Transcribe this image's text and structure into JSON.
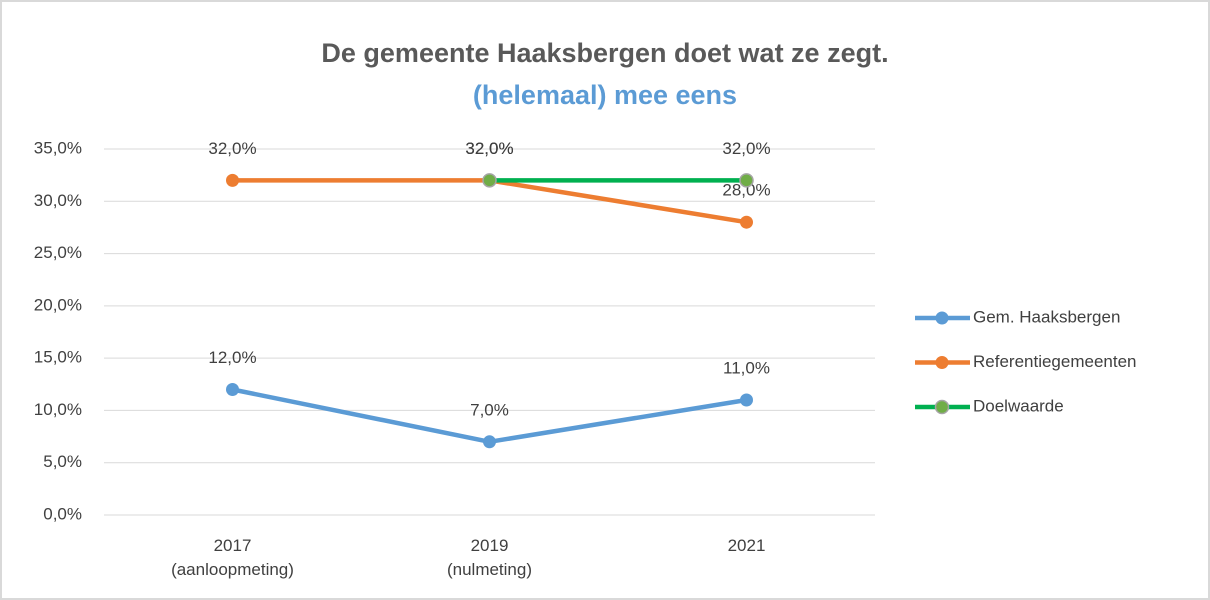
{
  "chart_data": {
    "type": "line",
    "title": "De gemeente Haaksbergen doet wat ze zegt.",
    "subtitle": "(helemaal) mee eens",
    "categories": [
      "2017\n(aanloopmeting)",
      "2019\n(nulmeting)",
      "2021"
    ],
    "series": [
      {
        "name": "Gem. Haaksbergen",
        "color": "#5b9bd5",
        "values": [
          12,
          7,
          11
        ],
        "value_labels": [
          "12,0%",
          "7,0%",
          "11,0%"
        ]
      },
      {
        "name": "Referentiegemeenten",
        "color": "#ed7d31",
        "values": [
          32,
          32,
          28
        ],
        "value_labels": [
          "32,0%",
          "32,0%",
          "28,0%"
        ]
      },
      {
        "name": "Doelwaarde",
        "color": "#00b050",
        "values": [
          null,
          32,
          32
        ],
        "value_labels": [
          null,
          "32,0%",
          "32,0%"
        ]
      }
    ],
    "ylim": [
      0,
      35
    ],
    "yticks": [
      {
        "value": 0,
        "label": "0,0%"
      },
      {
        "value": 5,
        "label": "5,0%"
      },
      {
        "value": 10,
        "label": "10,0%"
      },
      {
        "value": 15,
        "label": "15,0%"
      },
      {
        "value": 20,
        "label": "20,0%"
      },
      {
        "value": 25,
        "label": "25,0%"
      },
      {
        "value": 30,
        "label": "30,0%"
      },
      {
        "value": 35,
        "label": "35,0%"
      }
    ],
    "grid": true,
    "legend": "right"
  }
}
